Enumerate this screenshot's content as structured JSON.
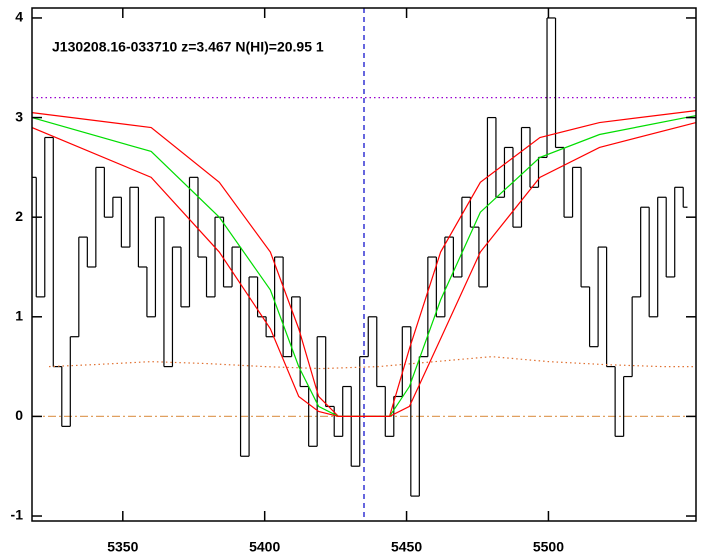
{
  "chart_data": {
    "type": "line",
    "annotation": "J130208.16-033710 z=3.467 N(HI)=20.95 1",
    "xlim": [
      5318,
      5552
    ],
    "ylim": [
      -1.05,
      4.1
    ],
    "xticks": [
      5350,
      5400,
      5450,
      5500
    ],
    "yticks": [
      -1,
      0,
      1,
      2,
      3,
      4
    ],
    "reference_lines": [
      {
        "axis": "y",
        "value": 3.2,
        "color": "#9a00d0",
        "style": "dotted"
      },
      {
        "axis": "x",
        "value": 5435,
        "color": "#0000c8",
        "style": "dashed"
      },
      {
        "axis": "y",
        "value": 0,
        "color": "#e0a060",
        "style": "dashdot"
      }
    ],
    "series": [
      {
        "color": "#000000",
        "drawstyle": "steps",
        "x": [
          5318,
          5321,
          5324,
          5327,
          5330,
          5333,
          5336,
          5339,
          5342,
          5345,
          5348,
          5351,
          5354,
          5357,
          5360,
          5363,
          5366,
          5369,
          5372,
          5375,
          5378,
          5381,
          5384,
          5387,
          5390,
          5393,
          5396,
          5399,
          5402,
          5405,
          5408,
          5411,
          5414,
          5417,
          5420,
          5423,
          5426,
          5429,
          5432,
          5435,
          5438,
          5441,
          5444,
          5447,
          5450,
          5453,
          5456,
          5459,
          5462,
          5465,
          5468,
          5471,
          5474,
          5477,
          5480,
          5483,
          5486,
          5489,
          5492,
          5495,
          5498,
          5501,
          5504,
          5507,
          5510,
          5513,
          5516,
          5519,
          5522,
          5525,
          5528,
          5531,
          5534,
          5537,
          5540,
          5543,
          5546,
          5549
        ],
        "values": [
          2.4,
          1.2,
          2.8,
          0.5,
          -0.1,
          0.8,
          1.8,
          1.5,
          2.5,
          2.0,
          2.2,
          1.7,
          2.3,
          1.5,
          1.0,
          2.0,
          0.5,
          1.7,
          1.1,
          2.4,
          1.6,
          1.2,
          2.0,
          1.3,
          1.7,
          -0.4,
          1.4,
          1.0,
          0.8,
          1.6,
          0.6,
          1.2,
          0.3,
          -0.3,
          0.8,
          0.1,
          -0.2,
          0.3,
          -0.5,
          0.6,
          1.0,
          0.3,
          -0.2,
          0.2,
          0.9,
          -0.8,
          0.6,
          1.6,
          1.0,
          1.8,
          1.4,
          2.2,
          1.9,
          1.3,
          3.0,
          2.2,
          2.7,
          1.9,
          2.9,
          2.3,
          2.6,
          4.0,
          2.7,
          2.0,
          2.5,
          1.3,
          0.7,
          1.7,
          0.5,
          -0.2,
          0.4,
          1.2,
          2.1,
          1.0,
          2.2,
          1.4,
          2.3,
          2.1
        ]
      },
      {
        "color": "#e07030",
        "drawstyle": "dotted",
        "x": [
          5324,
          5340,
          5360,
          5380,
          5400,
          5420,
          5440,
          5460,
          5480,
          5500,
          5520,
          5540,
          5552
        ],
        "values": [
          0.5,
          0.52,
          0.55,
          0.53,
          0.5,
          0.48,
          0.5,
          0.55,
          0.6,
          0.55,
          0.52,
          0.5,
          0.5
        ]
      },
      {
        "color": "#ff0000",
        "drawstyle": "line",
        "x": [
          5318,
          5360,
          5384,
          5402,
          5412,
          5419,
          5426,
          5444,
          5451,
          5462,
          5476,
          5497,
          5518,
          5552
        ],
        "values": [
          3.05,
          2.9,
          2.35,
          1.65,
          0.88,
          0.2,
          0,
          0,
          0.68,
          1.65,
          2.35,
          2.8,
          2.95,
          3.07
        ]
      },
      {
        "color": "#00dd00",
        "drawstyle": "line",
        "x": [
          5318,
          5360,
          5384,
          5402,
          5412,
          5419,
          5426,
          5444,
          5451,
          5462,
          5476,
          5497,
          5518,
          5552
        ],
        "values": [
          3.0,
          2.66,
          2.0,
          1.27,
          0.5,
          0.1,
          0,
          0,
          0.3,
          1.17,
          2.05,
          2.6,
          2.83,
          3.02
        ]
      },
      {
        "color": "#ff0000",
        "drawstyle": "line",
        "x": [
          5318,
          5360,
          5384,
          5402,
          5412,
          5419,
          5426,
          5444,
          5451,
          5462,
          5476,
          5497,
          5518,
          5552
        ],
        "values": [
          2.9,
          2.4,
          1.65,
          0.88,
          0.2,
          0.05,
          0,
          0,
          0.1,
          0.78,
          1.65,
          2.4,
          2.7,
          2.95
        ]
      }
    ]
  }
}
